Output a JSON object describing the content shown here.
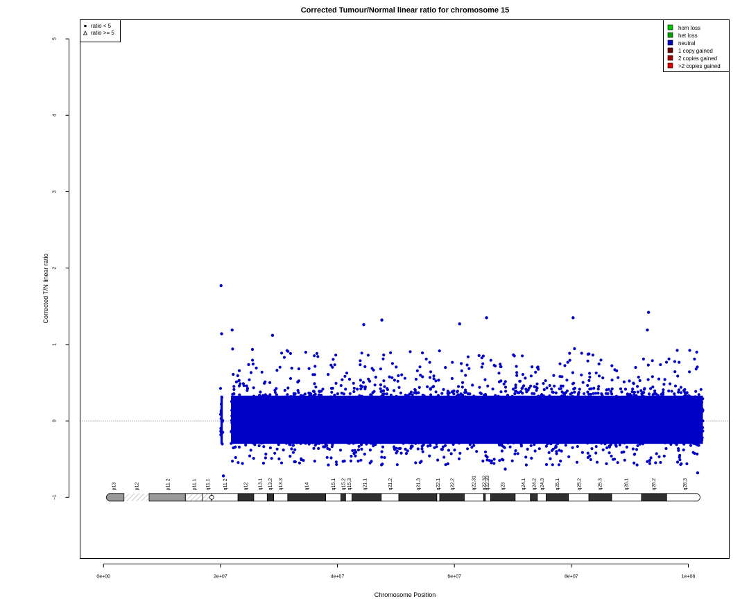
{
  "chart_data": {
    "type": "scatter",
    "title": "Corrected Tumour/Normal linear ratio for chromosome  15",
    "xlabel": "Chromosome Position",
    "ylabel": "Corrected T/N linear ratio",
    "xlim": [
      -4000000,
      107000000
    ],
    "ylim": [
      -1.8,
      5.25
    ],
    "x_ticks": [
      {
        "value": 0,
        "label": "0e+00"
      },
      {
        "value": 20000000,
        "label": "2e+07"
      },
      {
        "value": 40000000,
        "label": "4e+07"
      },
      {
        "value": 60000000,
        "label": "6e+07"
      },
      {
        "value": 80000000,
        "label": "8e+07"
      },
      {
        "value": 100000000,
        "label": "1e+08"
      }
    ],
    "y_ticks": [
      {
        "value": -1,
        "label": "−1"
      },
      {
        "value": 0,
        "label": "0"
      },
      {
        "value": 1,
        "label": "1"
      },
      {
        "value": 2,
        "label": "2"
      },
      {
        "value": 3,
        "label": "3"
      },
      {
        "value": 4,
        "label": "4"
      },
      {
        "value": 5,
        "label": "5"
      }
    ],
    "reference_line": {
      "y": 0,
      "style": "dotted",
      "color": "#666666"
    },
    "point_color": "#0000c8",
    "data_range": {
      "x_start": 20000000,
      "x_end": 102500000,
      "y_typical": [
        -0.4,
        0.5
      ],
      "y_outlier_range": [
        -0.72,
        1.77
      ]
    },
    "gap": {
      "x_start": 20400000,
      "x_end": 21800000
    },
    "outliers": [
      {
        "x": 20100000,
        "y": 1.77
      },
      {
        "x": 20200000,
        "y": 1.14
      },
      {
        "x": 22000000,
        "y": 1.19
      },
      {
        "x": 28900000,
        "y": 1.12
      },
      {
        "x": 44500000,
        "y": 1.26
      },
      {
        "x": 47600000,
        "y": 1.32
      },
      {
        "x": 60900000,
        "y": 1.27
      },
      {
        "x": 65500000,
        "y": 1.35
      },
      {
        "x": 80300000,
        "y": 1.35
      },
      {
        "x": 93200000,
        "y": 1.42
      },
      {
        "x": 93000000,
        "y": 1.19
      },
      {
        "x": 20500000,
        "y": -0.72
      },
      {
        "x": 68700000,
        "y": -0.63
      },
      {
        "x": 101600000,
        "y": -0.68
      }
    ],
    "shape_legend": {
      "placement": "top-left",
      "items": [
        {
          "symbol": "dot",
          "label": "ratio < 5"
        },
        {
          "symbol": "triangle",
          "label": "ratio >= 5"
        }
      ]
    },
    "legend": {
      "placement": "top-right",
      "items": [
        {
          "label": "hom loss",
          "color": "#00c800"
        },
        {
          "label": "het loss",
          "color": "#00a000"
        },
        {
          "label": "neutral",
          "color": "#0000c8"
        },
        {
          "label": "1 copy gained",
          "color": "#6b0000"
        },
        {
          "label": "2 copies gained",
          "color": "#a00000"
        },
        {
          "label": ">2 copies gained",
          "color": "#e00000"
        }
      ]
    },
    "ideogram": {
      "y": -1,
      "centromere": 18500000,
      "bands": [
        {
          "name": "p13",
          "start": 0,
          "end": 3500000,
          "stain": "gpos50",
          "label_x": 1750000
        },
        {
          "name": "p12",
          "start": 3500000,
          "end": 7800000,
          "stain": "stalk",
          "label_x": 5650000
        },
        {
          "name": "p11.2",
          "start": 7800000,
          "end": 14000000,
          "stain": "gpos50",
          "label_x": 11000000
        },
        {
          "name": "p11.1",
          "start": 14000000,
          "end": 17000000,
          "stain": "acen",
          "label_x": 15500000
        },
        {
          "name": "q11.1",
          "start": 17000000,
          "end": 18500000,
          "stain": "cen",
          "label_x": 17800000
        },
        {
          "name": "q11.2",
          "start": 18500000,
          "end": 23000000,
          "stain": "gneg",
          "label_x": 20800000
        },
        {
          "name": "q12",
          "start": 23000000,
          "end": 25700000,
          "stain": "gpos100",
          "label_x": 24300000
        },
        {
          "name": "q13.1",
          "start": 25700000,
          "end": 28000000,
          "stain": "gneg",
          "label_x": 26800000
        },
        {
          "name": "q13.2",
          "start": 28000000,
          "end": 29100000,
          "stain": "gpos100",
          "label_x": 28500000
        },
        {
          "name": "q13.3",
          "start": 29100000,
          "end": 31500000,
          "stain": "gneg",
          "label_x": 30300000
        },
        {
          "name": "q14",
          "start": 31500000,
          "end": 38000000,
          "stain": "gpos100",
          "label_x": 34700000
        },
        {
          "name": "q15.1",
          "start": 38000000,
          "end": 40600000,
          "stain": "gneg",
          "label_x": 39300000
        },
        {
          "name": "q15.2",
          "start": 40600000,
          "end": 41400000,
          "stain": "gpos100",
          "label_x": 41000000
        },
        {
          "name": "q15.3",
          "start": 41400000,
          "end": 42500000,
          "stain": "gneg",
          "label_x": 42000000
        },
        {
          "name": "q21.1",
          "start": 42500000,
          "end": 47500000,
          "stain": "gpos100",
          "label_x": 44700000
        },
        {
          "name": "q21.2",
          "start": 47500000,
          "end": 50500000,
          "stain": "gneg",
          "label_x": 49000000
        },
        {
          "name": "q21.3",
          "start": 50500000,
          "end": 57000000,
          "stain": "gpos100",
          "label_x": 53800000
        },
        {
          "name": "q22.1",
          "start": 57000000,
          "end": 57500000,
          "stain": "gneg",
          "label_x": 57200000
        },
        {
          "name": "q22.2",
          "start": 57500000,
          "end": 61700000,
          "stain": "gpos100",
          "label_x": 59600000
        },
        {
          "name": "q22.31",
          "start": 61700000,
          "end": 65000000,
          "stain": "gneg",
          "label_x": 63300000
        },
        {
          "name": "q22.32",
          "start": 65000000,
          "end": 65300000,
          "stain": "gpos100",
          "label_x": 65100000
        },
        {
          "name": "q22.33",
          "start": 65300000,
          "end": 66200000,
          "stain": "gneg",
          "label_x": 65600000
        },
        {
          "name": "q23",
          "start": 66200000,
          "end": 70400000,
          "stain": "gpos100",
          "label_x": 68300000
        },
        {
          "name": "q24.1",
          "start": 70400000,
          "end": 73000000,
          "stain": "gneg",
          "label_x": 71800000
        },
        {
          "name": "q24.2",
          "start": 73000000,
          "end": 74200000,
          "stain": "gpos100",
          "label_x": 73600000
        },
        {
          "name": "q24.3",
          "start": 74200000,
          "end": 75700000,
          "stain": "gneg",
          "label_x": 75000000
        },
        {
          "name": "q25.1",
          "start": 75700000,
          "end": 79500000,
          "stain": "gpos100",
          "label_x": 77600000
        },
        {
          "name": "q25.2",
          "start": 79500000,
          "end": 83000000,
          "stain": "gneg",
          "label_x": 81300000
        },
        {
          "name": "q25.3",
          "start": 83000000,
          "end": 86900000,
          "stain": "gpos100",
          "label_x": 84900000
        },
        {
          "name": "q26.1",
          "start": 86900000,
          "end": 92000000,
          "stain": "gneg",
          "label_x": 89400000
        },
        {
          "name": "q26.2",
          "start": 92000000,
          "end": 96300000,
          "stain": "gpos100",
          "label_x": 94100000
        },
        {
          "name": "q26.3",
          "start": 96300000,
          "end": 102500000,
          "stain": "gneg",
          "label_x": 99400000
        }
      ]
    }
  }
}
